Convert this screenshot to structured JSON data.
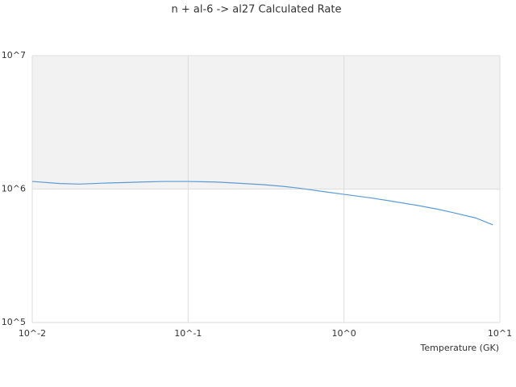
{
  "chart_data": {
    "type": "line",
    "title": "n + al-6 -> al27 Calculated Rate",
    "x_label": "Temperature (GK)",
    "x": [
      0.01,
      0.015,
      0.02,
      0.03,
      0.04,
      0.05,
      0.07,
      0.1,
      0.15,
      0.2,
      0.3,
      0.4,
      0.5,
      0.7,
      1,
      1.5,
      2,
      3,
      4,
      5,
      7,
      9
    ],
    "values": [
      1140000,
      1100000,
      1090000,
      1110000,
      1120000,
      1130000,
      1140000,
      1140000,
      1130000,
      1110000,
      1080000,
      1050000,
      1020000,
      966000,
      913000,
      857000,
      813000,
      752000,
      706000,
      666000,
      607000,
      540000
    ],
    "color": "#5b9bd5",
    "xscale": "log",
    "yscale": "log",
    "xlim": [
      0.01,
      10
    ],
    "ylim": [
      100000,
      10000000
    ],
    "xticks": [
      {
        "value": 0.01,
        "label": "10^-2"
      },
      {
        "value": 0.1,
        "label": "10^-1"
      },
      {
        "value": 1,
        "label": "10^0"
      },
      {
        "value": 10,
        "label": "10^1"
      }
    ],
    "yticks": [
      {
        "value": 100000,
        "label": "10^5"
      },
      {
        "value": 1000000,
        "label": "10^6"
      },
      {
        "value": 10000000,
        "label": "10^7"
      }
    ],
    "grid": true
  }
}
